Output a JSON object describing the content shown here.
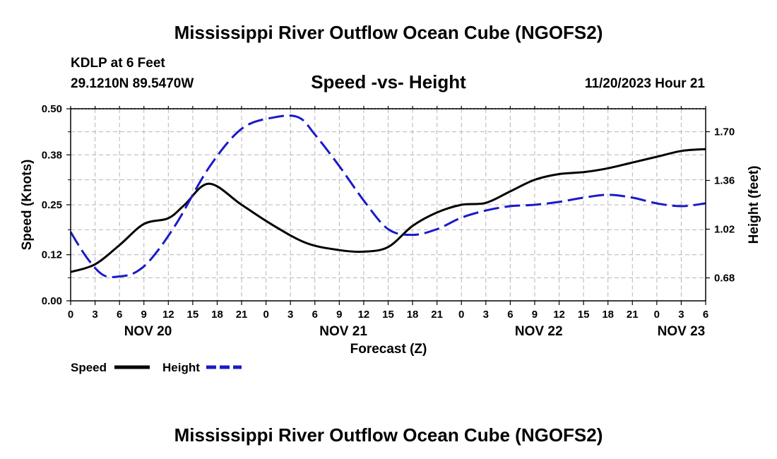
{
  "chart_data": {
    "type": "line",
    "title": "Mississippi River Outflow Ocean Cube (NGOFS2)",
    "footer_title": "Mississippi River Outflow Ocean Cube (NGOFS2)",
    "station": "KDLP at 6 Feet",
    "coords": "29.1210N  89.5470W",
    "subtitle": "Speed -vs- Height",
    "datetime": "11/20/2023 Hour 21",
    "xlabel": "Forecast (Z)",
    "ylabel_left": "Speed (Knots)",
    "ylabel_right": "Height (feet)",
    "xlim": [
      0,
      78
    ],
    "ylim_left": [
      0,
      0.5
    ],
    "ylim_right": [
      0.52,
      1.86
    ],
    "x_tick_values": [
      0,
      3,
      6,
      9,
      12,
      15,
      18,
      21,
      24,
      27,
      30,
      33,
      36,
      39,
      42,
      45,
      48,
      51,
      54,
      57,
      60,
      63,
      66,
      69,
      72,
      75,
      78
    ],
    "x_tick_labels": [
      "0",
      "3",
      "6",
      "9",
      "12",
      "15",
      "18",
      "21",
      "0",
      "3",
      "6",
      "9",
      "12",
      "15",
      "18",
      "21",
      "0",
      "3",
      "6",
      "9",
      "12",
      "15",
      "18",
      "21",
      "0",
      "3",
      "6"
    ],
    "date_labels": [
      {
        "x": 9.5,
        "label": "NOV 20"
      },
      {
        "x": 33.5,
        "label": "NOV 21"
      },
      {
        "x": 57.5,
        "label": "NOV 22"
      },
      {
        "x": 75,
        "label": "NOV 23"
      }
    ],
    "y_left_ticks": [
      0.0,
      0.12,
      0.25,
      0.38,
      0.5
    ],
    "y_left_tick_labels": [
      "0.00",
      "0.12",
      "0.25",
      "0.38",
      "0.50"
    ],
    "y_right_ticks": [
      0.68,
      1.02,
      1.36,
      1.7
    ],
    "y_right_tick_labels": [
      "0.68",
      "1.02",
      "1.36",
      "1.70"
    ],
    "grid": true,
    "series": [
      {
        "name": "Speed",
        "axis": "left",
        "color": "#000000",
        "dash": "solid",
        "x": [
          0,
          3,
          6,
          9,
          12,
          14,
          17,
          21,
          25,
          29,
          33,
          36,
          39,
          42,
          45,
          48,
          51,
          54,
          57,
          60,
          63,
          66,
          69,
          72,
          75,
          78
        ],
        "y": [
          0.075,
          0.095,
          0.145,
          0.2,
          0.215,
          0.25,
          0.305,
          0.25,
          0.195,
          0.15,
          0.132,
          0.128,
          0.14,
          0.195,
          0.23,
          0.25,
          0.255,
          0.285,
          0.315,
          0.33,
          0.335,
          0.345,
          0.36,
          0.375,
          0.39,
          0.395
        ]
      },
      {
        "name": "Height",
        "axis": "right",
        "color": "#1a1ac8",
        "dash": "dashed",
        "x": [
          0,
          2,
          4,
          6,
          8,
          10,
          13,
          17,
          21,
          25,
          28,
          30,
          33,
          36,
          39,
          42,
          45,
          48,
          51,
          54,
          57,
          60,
          63,
          66,
          69,
          72,
          75,
          78
        ],
        "y": [
          1.0,
          0.82,
          0.7,
          0.69,
          0.72,
          0.82,
          1.06,
          1.45,
          1.72,
          1.8,
          1.8,
          1.68,
          1.46,
          1.22,
          1.02,
          0.98,
          1.02,
          1.1,
          1.15,
          1.18,
          1.19,
          1.21,
          1.24,
          1.26,
          1.24,
          1.2,
          1.18,
          1.2
        ]
      }
    ],
    "legend": [
      {
        "label": "Speed",
        "color": "#000000",
        "dash": "solid"
      },
      {
        "label": "Height",
        "color": "#1a1ac8",
        "dash": "dashed"
      }
    ]
  }
}
